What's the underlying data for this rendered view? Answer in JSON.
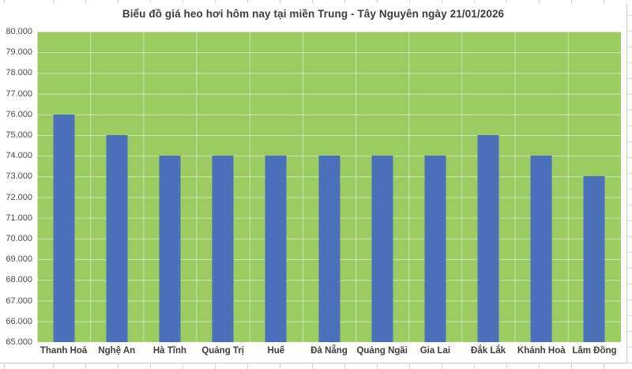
{
  "chart_data": {
    "type": "bar",
    "title": "Biểu đồ giá heo hơi hôm nay tại miền Trung - Tây Nguyên ngày 21/01/2026",
    "categories": [
      "Thanh Hoá",
      "Nghệ An",
      "Hà Tĩnh",
      "Quảng Trị",
      "Huế",
      "Đà Nẵng",
      "Quảng Ngãi",
      "Gia Lai",
      "Đắk Lắk",
      "Khánh Hoà",
      "Lâm Đồng"
    ],
    "values": [
      76000,
      75000,
      74000,
      74000,
      74000,
      74000,
      74000,
      74000,
      75000,
      74000,
      73000
    ],
    "y_tick_labels": [
      "80.000",
      "79.000",
      "78.000",
      "77.000",
      "76.000",
      "75.000",
      "74.000",
      "73.000",
      "72.000",
      "71.000",
      "70.000",
      "69.000",
      "68.000",
      "67.000",
      "66.000",
      "65.000"
    ],
    "ylim": [
      65000,
      80000
    ],
    "y_step": 1000,
    "xlabel": "",
    "ylabel": "",
    "grid": true,
    "legend": "none",
    "colors": {
      "bar": "#4a70ba",
      "plot_bg": "#9ccb62",
      "gridline": "rgba(255,255,255,0.5)",
      "title_text": "#3d3d3d",
      "tick_text": "#4a4a4a",
      "x_label_text": "#3d3d3d",
      "sheet_gridline": "#d9d9d9"
    }
  }
}
